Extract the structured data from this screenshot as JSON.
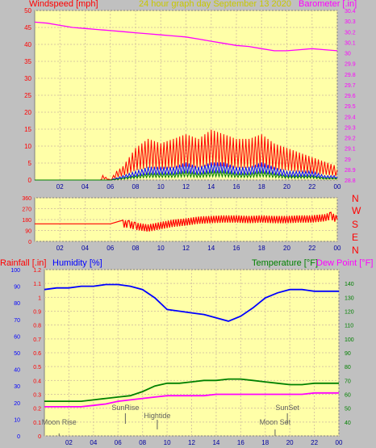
{
  "header": {
    "windspeed_label": "Windspeed [mph]",
    "title": "24 hour graph day   September 13 2020",
    "barometer_label": "Barometer [.in]"
  },
  "lower_header": {
    "rainfall_label": "Rainfall [.in]",
    "humidity_label": "Humidity [%]",
    "temperature_label": "Temperature [°F]",
    "dewpoint_label": "Dew Point [°F]"
  },
  "compass_labels": [
    "N",
    "W",
    "S",
    "E",
    "N"
  ],
  "colors": {
    "background": "#c0c0c0",
    "plot_bg": "#ffffa8",
    "wind": "#ff0000",
    "wind_avg": "#0000ff",
    "wind_low": "#008000",
    "barometer": "#ff00ff",
    "humidity": "#0000ff",
    "temperature": "#008000",
    "dewpoint": "#ff00ff",
    "title": "#c8c800"
  },
  "chart_data": [
    {
      "type": "line",
      "name": "wind_barometer",
      "x_ticks": [
        "02",
        "04",
        "06",
        "08",
        "10",
        "12",
        "14",
        "16",
        "18",
        "20",
        "22",
        "00"
      ],
      "y_left_ticks": [
        0,
        5,
        10,
        15,
        20,
        25,
        30,
        35,
        40,
        45,
        50
      ],
      "y_left_range": [
        0,
        50
      ],
      "y_right_ticks": [
        "28.8",
        "28.9",
        "29",
        "29.1",
        "29.2",
        "29.3",
        "29.4",
        "29.5",
        "29.6",
        "29.7",
        "29.8",
        "29.9",
        "30",
        "30.1",
        "30.2",
        "30.3",
        "30.4"
      ],
      "y_right_range": [
        28.8,
        30.4
      ],
      "series": [
        {
          "role": "wind_gust",
          "x": [
            0,
            2,
            4,
            5.2,
            5.4,
            6,
            6.5,
            7,
            7.5,
            8,
            8.5,
            9,
            10,
            11,
            12,
            13,
            14,
            15,
            16,
            17,
            18,
            19,
            20,
            21,
            22,
            23,
            24
          ],
          "y": [
            0,
            0,
            0,
            0,
            1,
            0,
            2,
            3,
            5,
            7,
            8,
            9,
            8,
            9,
            10,
            9,
            11,
            10,
            9,
            9,
            10,
            8,
            7,
            6,
            5,
            4,
            3
          ]
        },
        {
          "role": "wind_avg",
          "x": [
            0,
            6,
            7,
            8,
            9,
            10,
            11,
            12,
            13,
            14,
            15,
            16,
            17,
            18,
            19,
            20,
            21,
            22,
            23,
            24
          ],
          "y": [
            0,
            0,
            1,
            2,
            3,
            3,
            3,
            4,
            3,
            4,
            4,
            3,
            3,
            4,
            3,
            2,
            2,
            2,
            1,
            1
          ]
        },
        {
          "role": "barometer",
          "x": [
            0,
            1,
            2,
            3,
            4,
            5,
            6,
            7,
            8,
            9,
            10,
            11,
            12,
            13,
            14,
            15,
            16,
            17,
            18,
            19,
            20,
            21,
            22,
            23,
            24
          ],
          "y": [
            30.29,
            30.28,
            30.26,
            30.24,
            30.23,
            30.22,
            30.21,
            30.2,
            30.19,
            30.18,
            30.17,
            30.16,
            30.15,
            30.13,
            30.11,
            30.09,
            30.07,
            30.06,
            30.04,
            30.02,
            30.02,
            30.03,
            30.04,
            30.03,
            30.02
          ]
        }
      ]
    },
    {
      "type": "line",
      "name": "wind_direction",
      "x_ticks": [
        "02",
        "04",
        "06",
        "08",
        "10",
        "12",
        "14",
        "16",
        "18",
        "20",
        "22",
        "00"
      ],
      "y_ticks": [
        0,
        90,
        180,
        270,
        360
      ],
      "y_range": [
        0,
        360
      ],
      "series": [
        {
          "role": "direction",
          "x": [
            0,
            2,
            4,
            6,
            7,
            7.5,
            8,
            9,
            10,
            11,
            12,
            13,
            14,
            15,
            16,
            17,
            18,
            19,
            20,
            21,
            22,
            23,
            23.5,
            24
          ],
          "y": [
            145,
            145,
            145,
            145,
            145,
            140,
            125,
            110,
            130,
            150,
            160,
            175,
            180,
            185,
            185,
            180,
            185,
            180,
            180,
            185,
            185,
            195,
            210,
            180
          ]
        }
      ]
    },
    {
      "type": "line",
      "name": "rain_humidity_temperature",
      "x_ticks": [
        "02",
        "04",
        "06",
        "08",
        "10",
        "12",
        "14",
        "16",
        "18",
        "20",
        "22",
        "00"
      ],
      "rain_ticks": [
        "0",
        "0.1",
        "0.2",
        "0.3",
        "0.4",
        "0.5",
        "0.6",
        "0.7",
        "0.8",
        "0.9",
        "1",
        "1.1",
        "1.2"
      ],
      "rain_range": [
        0,
        1.2
      ],
      "humidity_ticks": [
        0,
        10,
        20,
        30,
        40,
        50,
        60,
        70,
        80,
        90,
        100
      ],
      "humidity_range": [
        0,
        100
      ],
      "temperature_ticks": [
        40,
        50,
        60,
        70,
        80,
        90,
        100,
        110,
        120,
        130,
        140
      ],
      "temperature_range": [
        30,
        150
      ],
      "annotations": [
        "Moon Rise",
        "SunRise",
        "Hightide",
        "SunSet",
        "Moon Set"
      ],
      "series": [
        {
          "role": "humidity",
          "x": [
            0,
            1,
            2,
            3,
            4,
            5,
            6,
            7,
            8,
            9,
            10,
            11,
            12,
            13,
            14,
            15,
            16,
            17,
            18,
            19,
            20,
            21,
            22,
            23,
            24
          ],
          "y": [
            88,
            89,
            89,
            90,
            90,
            91,
            91,
            90,
            88,
            83,
            76,
            75,
            74,
            73,
            71,
            69,
            72,
            77,
            83,
            86,
            88,
            88,
            87,
            87,
            87
          ]
        },
        {
          "role": "temperature",
          "x": [
            0,
            1,
            2,
            3,
            4,
            5,
            6,
            7,
            8,
            9,
            10,
            11,
            12,
            13,
            14,
            15,
            16,
            17,
            18,
            19,
            20,
            21,
            22,
            23,
            24
          ],
          "y": [
            55,
            55,
            55,
            55,
            56,
            57,
            58,
            59,
            62,
            66,
            68,
            68,
            69,
            70,
            70,
            71,
            71,
            70,
            69,
            68,
            67,
            67,
            68,
            68,
            68
          ]
        },
        {
          "role": "dewpoint",
          "x": [
            0,
            1,
            2,
            3,
            4,
            5,
            6,
            7,
            8,
            9,
            10,
            11,
            12,
            13,
            14,
            15,
            16,
            17,
            18,
            19,
            20,
            21,
            22,
            23,
            24
          ],
          "y": [
            51,
            51,
            51,
            51,
            52,
            53,
            55,
            56,
            57,
            58,
            59,
            59,
            59,
            59,
            60,
            60,
            60,
            60,
            60,
            60,
            60,
            60,
            61,
            61,
            61
          ]
        }
      ]
    }
  ]
}
